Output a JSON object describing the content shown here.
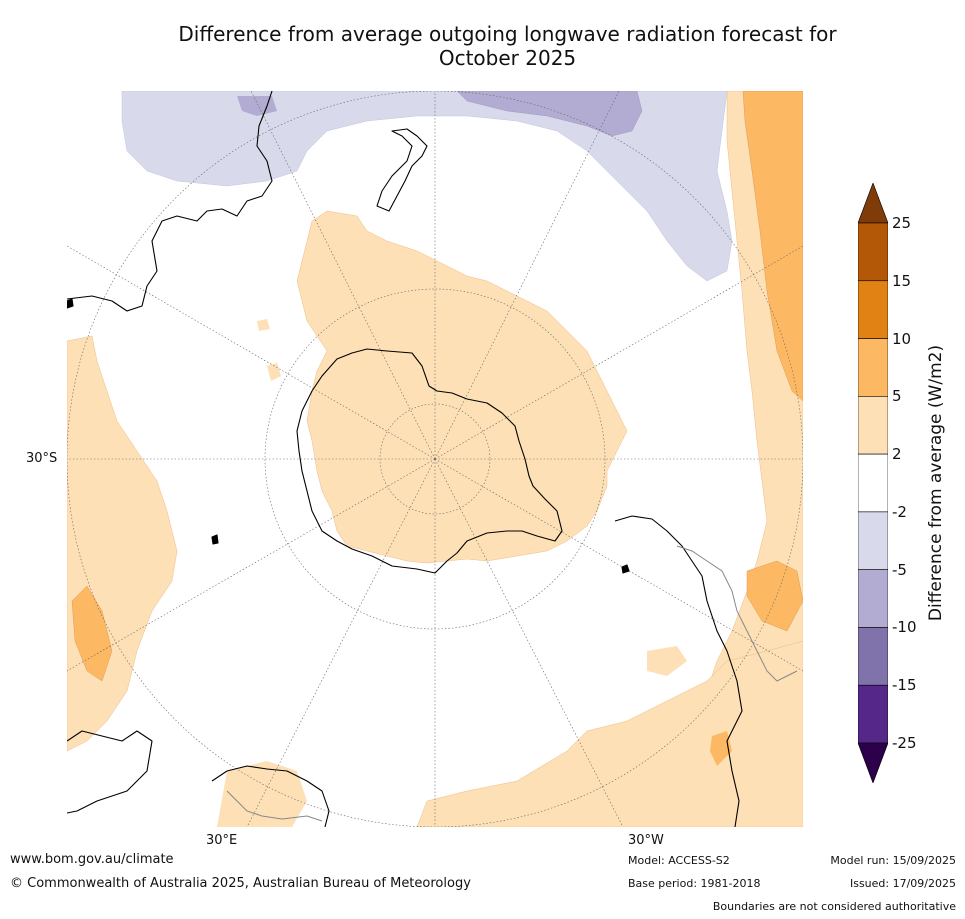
{
  "title_line1": "Difference from average outgoing longwave radiation forecast for",
  "title_line2": "October 2025",
  "map": {
    "projection": "south-polar-stereographic",
    "lat_label": "30°S",
    "lon_labels": [
      "30°E",
      "30°W"
    ],
    "land_colors": {
      "coast": "#000000",
      "boundaries": "#888888",
      "graticule": "#555555"
    }
  },
  "colorbar": {
    "title": "Difference from average (W/m2)",
    "ticks": [
      "25",
      "15",
      "10",
      "5",
      "2",
      "-2",
      "-5",
      "-10",
      "-15",
      "-25"
    ],
    "colors": [
      "#7f3b08",
      "#b35806",
      "#e08214",
      "#fdb863",
      "#fee0b6",
      "#ffffff",
      "#d8daeb",
      "#b2abd2",
      "#8073ac",
      "#542788",
      "#2d004b"
    ],
    "extend": "both"
  },
  "footer": {
    "url": "www.bom.gov.au/climate",
    "copyright": "© Commonwealth of Australia 2025, Australian Bureau of Meteorology",
    "model": "Model: ACCESS-S2",
    "base_period": "Base period: 1981-2018",
    "model_run": "Model run: 15/09/2025",
    "issued": "Issued: 17/09/2025",
    "disclaimer": "Boundaries are not considered authoritative"
  }
}
